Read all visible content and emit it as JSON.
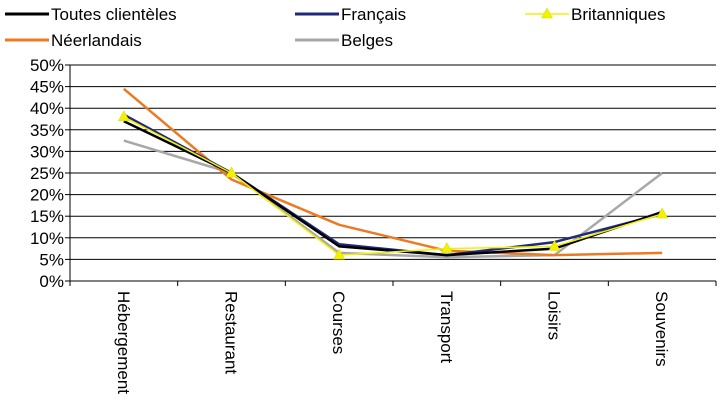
{
  "chart_data": {
    "type": "line",
    "categories": [
      "Hébergement",
      "Restaurant",
      "Courses",
      "Transport",
      "Loisirs",
      "Souvenirs"
    ],
    "ylim": [
      0,
      50
    ],
    "yticks": [
      0,
      5,
      10,
      15,
      20,
      25,
      30,
      35,
      40,
      45,
      50
    ],
    "y_tick_labels": [
      "0%",
      "5%",
      "10%",
      "15%",
      "20%",
      "25%",
      "30%",
      "35%",
      "40%",
      "45%",
      "50%"
    ],
    "grid": true,
    "legend_position": "top",
    "series": [
      {
        "name": "Toutes clientèles",
        "color": "#000000",
        "marker": "none",
        "values": [
          37,
          25,
          8,
          6,
          7.5,
          16
        ]
      },
      {
        "name": "Français",
        "color": "#1f2a7a",
        "marker": "none",
        "values": [
          38.5,
          25,
          8.5,
          6,
          9,
          15.5
        ]
      },
      {
        "name": "Britanniques",
        "color": "#f2f200",
        "marker": "triangle",
        "values": [
          38,
          25,
          6,
          7.5,
          8,
          15.5
        ]
      },
      {
        "name": "Néerlandais",
        "color": "#ec7a22",
        "marker": "none",
        "values": [
          44.5,
          23.5,
          13,
          7,
          6,
          6.5
        ]
      },
      {
        "name": "Belges",
        "color": "#a8a8a8",
        "marker": "none",
        "values": [
          32.5,
          25,
          6.5,
          5.5,
          6,
          25
        ]
      }
    ]
  }
}
